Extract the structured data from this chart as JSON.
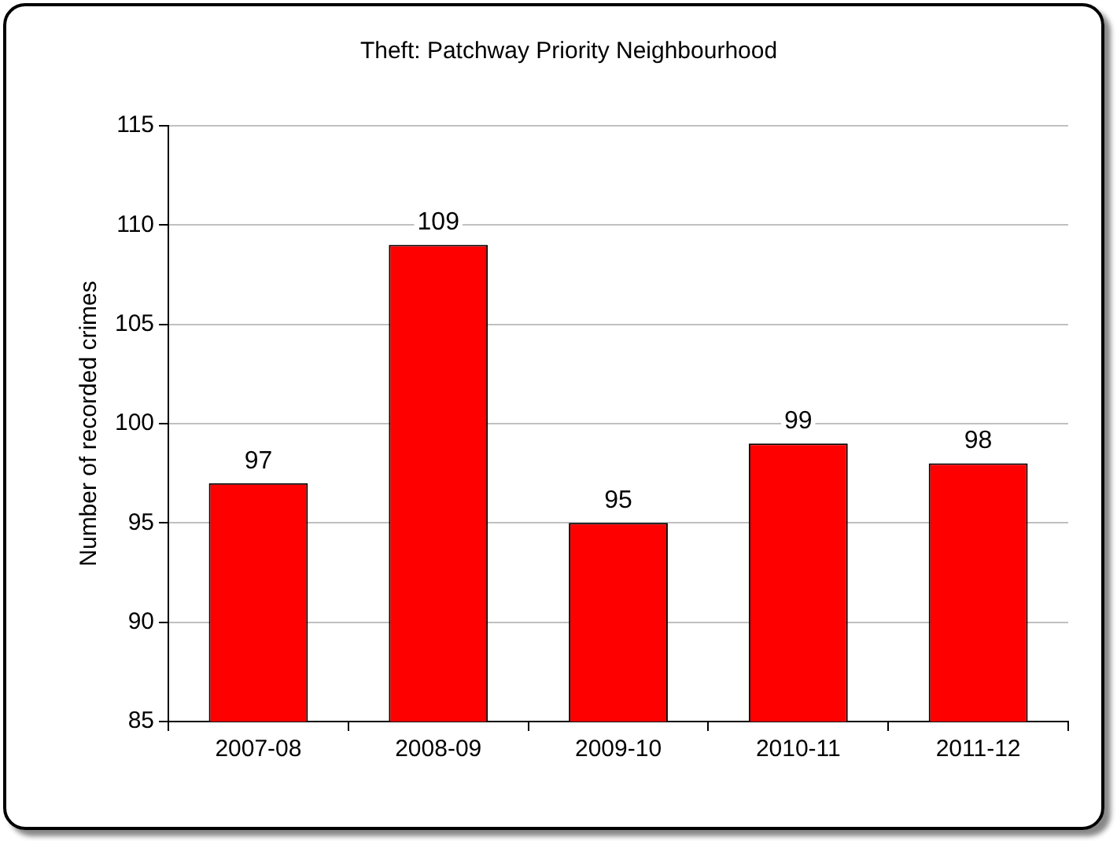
{
  "chart_data": {
    "type": "bar",
    "title": "Theft: Patchway Priority Neighbourhood",
    "ylabel": "Number of recorded crimes",
    "categories": [
      "2007-08",
      "2008-09",
      "2009-10",
      "2010-11",
      "2011-12"
    ],
    "values": [
      97,
      109,
      95,
      99,
      98
    ],
    "color": "#ff0000",
    "ylim": [
      85,
      115
    ],
    "yticks": [
      85,
      90,
      95,
      100,
      105,
      110,
      115
    ],
    "grid": "y",
    "data_labels": true
  }
}
